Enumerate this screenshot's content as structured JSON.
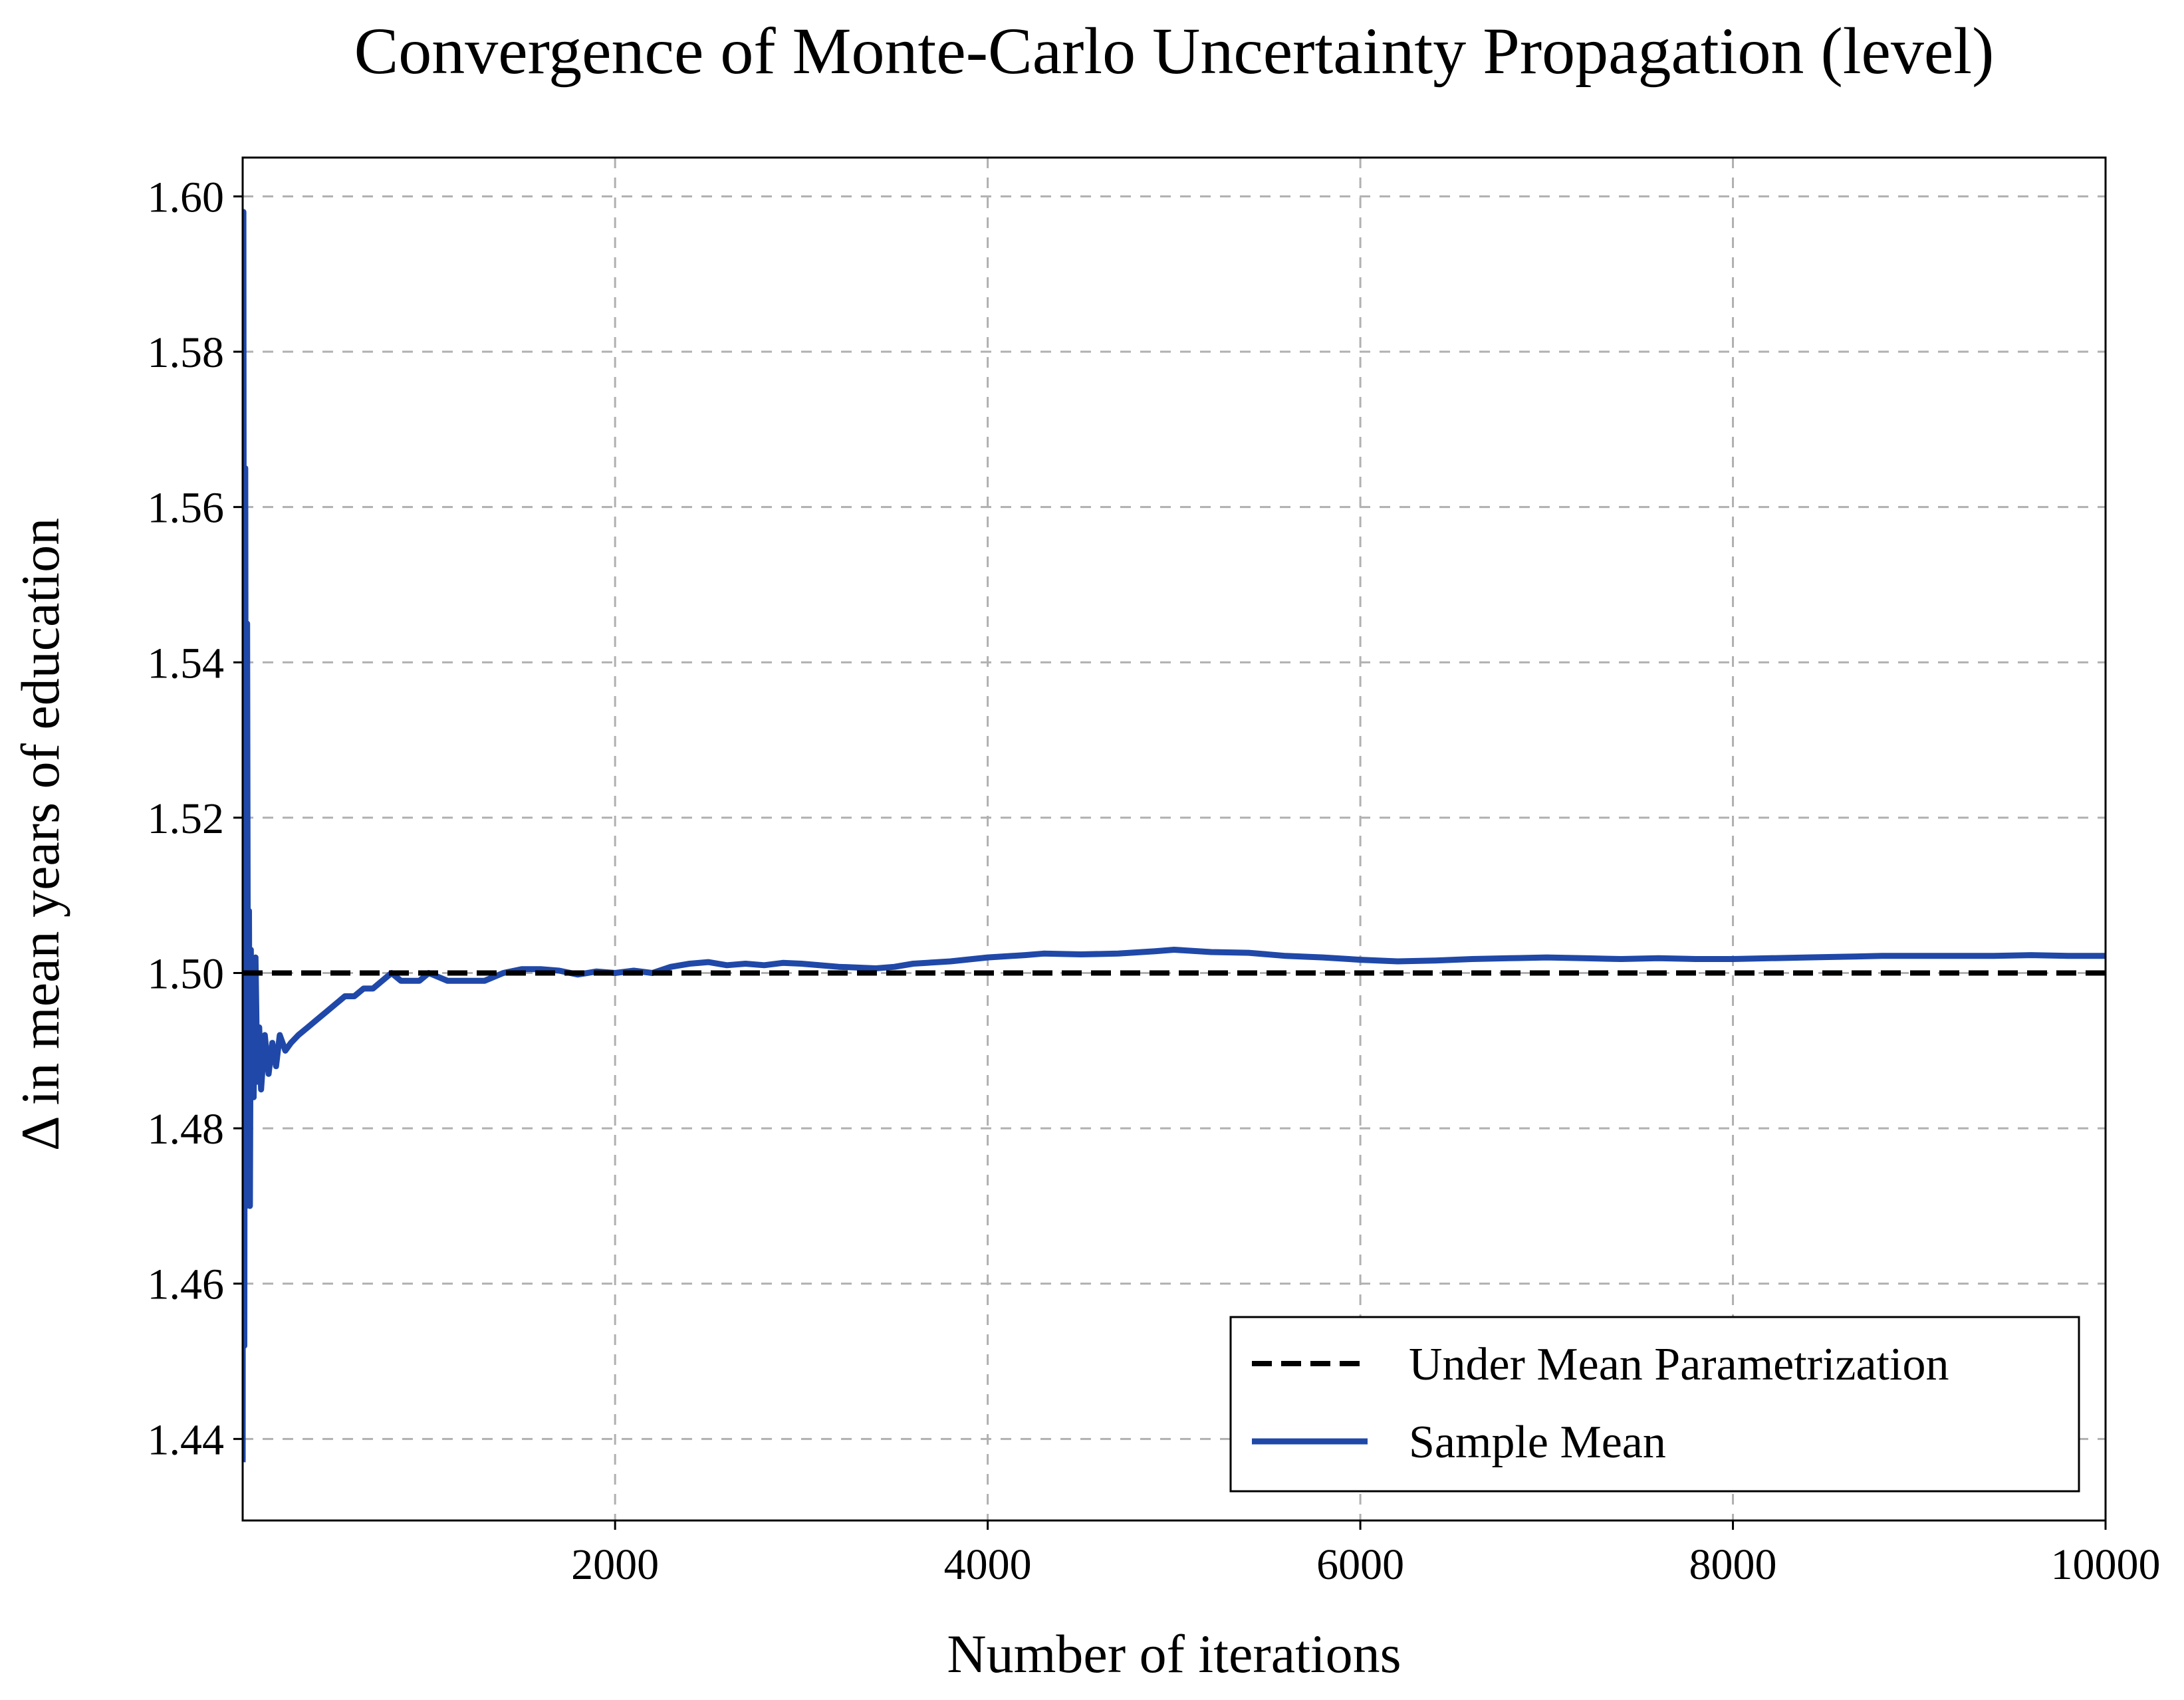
{
  "chart_data": {
    "type": "line",
    "title": "Convergence of Monte-Carlo Uncertainty Propagation (level)",
    "xlabel": "Number of iterations",
    "ylabel": "Δ in mean years of education",
    "xlim": [
      1,
      10000
    ],
    "ylim": [
      1.4295,
      1.605
    ],
    "x_ticks": [
      2000,
      4000,
      6000,
      8000,
      10000
    ],
    "x_tick_labels": [
      "2000",
      "4000",
      "6000",
      "8000",
      "10000"
    ],
    "y_ticks": [
      1.44,
      1.46,
      1.48,
      1.5,
      1.52,
      1.54,
      1.56,
      1.58,
      1.6
    ],
    "y_tick_labels": [
      "1.44",
      "1.46",
      "1.48",
      "1.50",
      "1.52",
      "1.54",
      "1.56",
      "1.58",
      "1.60"
    ],
    "grid": true,
    "legend_position": "lower-right",
    "series": [
      {
        "name": "Under Mean Parametrization",
        "style": "dashed",
        "color": "#000000",
        "x": [
          1,
          10000
        ],
        "y": [
          1.5,
          1.5
        ]
      },
      {
        "name": "Sample Mean",
        "style": "solid",
        "color": "#1f48a8",
        "x": [
          1,
          5,
          10,
          15,
          20,
          25,
          30,
          35,
          40,
          45,
          50,
          55,
          60,
          70,
          80,
          90,
          100,
          120,
          140,
          160,
          180,
          200,
          230,
          260,
          300,
          350,
          400,
          450,
          500,
          550,
          600,
          650,
          700,
          750,
          800,
          850,
          900,
          950,
          1000,
          1100,
          1200,
          1300,
          1400,
          1500,
          1600,
          1700,
          1800,
          1900,
          2000,
          2100,
          2200,
          2300,
          2400,
          2500,
          2600,
          2700,
          2800,
          2900,
          3000,
          3200,
          3400,
          3500,
          3600,
          3800,
          4000,
          4200,
          4300,
          4500,
          4700,
          4900,
          5000,
          5200,
          5400,
          5600,
          5800,
          6000,
          6200,
          6400,
          6600,
          6800,
          7000,
          7200,
          7400,
          7600,
          7800,
          8000,
          8200,
          8400,
          8600,
          8800,
          9000,
          9200,
          9400,
          9600,
          9800,
          10000
        ],
        "y": [
          1.437,
          1.598,
          1.452,
          1.565,
          1.47,
          1.545,
          1.482,
          1.508,
          1.47,
          1.503,
          1.486,
          1.498,
          1.484,
          1.502,
          1.486,
          1.493,
          1.485,
          1.492,
          1.487,
          1.491,
          1.488,
          1.492,
          1.49,
          1.491,
          1.492,
          1.493,
          1.494,
          1.495,
          1.496,
          1.497,
          1.497,
          1.498,
          1.498,
          1.499,
          1.5,
          1.499,
          1.499,
          1.499,
          1.5,
          1.499,
          1.499,
          1.499,
          1.5,
          1.5005,
          1.5005,
          1.5003,
          1.4998,
          1.5002,
          1.5,
          1.5003,
          1.5,
          1.5008,
          1.5012,
          1.5014,
          1.501,
          1.5012,
          1.501,
          1.5013,
          1.5012,
          1.5008,
          1.5006,
          1.5008,
          1.5012,
          1.5015,
          1.502,
          1.5023,
          1.5025,
          1.5024,
          1.5025,
          1.5028,
          1.503,
          1.5027,
          1.5026,
          1.5022,
          1.502,
          1.5017,
          1.5015,
          1.5016,
          1.5018,
          1.5019,
          1.502,
          1.5019,
          1.5018,
          1.5019,
          1.5018,
          1.5018,
          1.5019,
          1.502,
          1.5021,
          1.5022,
          1.5022,
          1.5022,
          1.5022,
          1.5023,
          1.5022,
          1.5022
        ]
      }
    ]
  }
}
